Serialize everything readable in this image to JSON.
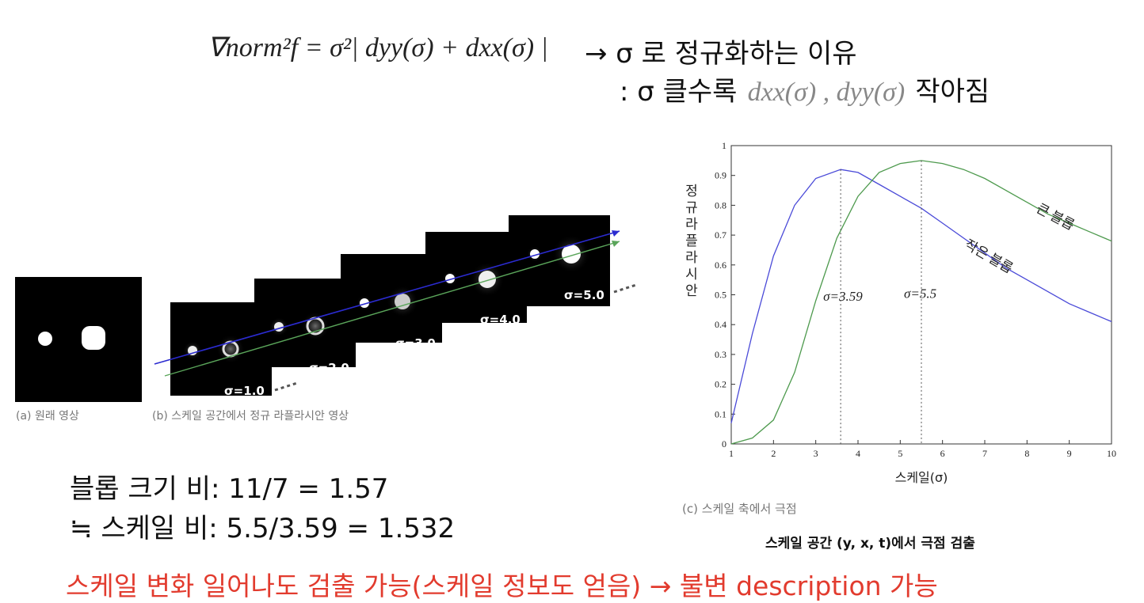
{
  "formula": {
    "lhs": "∇norm²f = σ²| dyy(σ) + dxx(σ) |",
    "arrow_text": "→ σ 로 정규화하는 이유",
    "line2_prefix": ": σ 클수록",
    "line2_terms": "dxx(σ) , dyy(σ)",
    "line2_suffix": "작아짐"
  },
  "figure_a": {
    "caption": "(a) 원래 영상"
  },
  "figure_b": {
    "caption": "(b) 스케일 공간에서 정규 라플라시안 영상",
    "sigma_labels": [
      "σ=1.0",
      "σ=2.0",
      "σ=3.0",
      "σ=4.0",
      "σ=5.0"
    ]
  },
  "figure_c": {
    "caption": "(c) 스케일 축에서 극점"
  },
  "scale_space_caption": "스케일 공간 (y, x, t)에서 극점 검출",
  "ratio": {
    "line1": "블롭 크기 비:  11/7 = 1.57",
    "line2": "≒ 스케일 비: 5.5/3.59  =  1.532"
  },
  "conclusion": "스케일 변화 일어나도 검출 가능(스케일 정보도 얻음) → 불변 description 가능",
  "colors": {
    "small_blob": "#4a4ad8",
    "large_blob": "#4e9a4e",
    "conclusion": "#e23b2e"
  },
  "chart_data": {
    "type": "line",
    "xlabel": "스케일(σ)",
    "ylabel": "정규 라플라시안",
    "xlim": [
      1,
      10
    ],
    "ylim": [
      0,
      1
    ],
    "xticks": [
      "1",
      "2",
      "3",
      "4",
      "5",
      "6",
      "7",
      "8",
      "9",
      "10"
    ],
    "yticks": [
      "0",
      "0.1",
      "0.2",
      "0.3",
      "0.4",
      "0.5",
      "0.6",
      "0.7",
      "0.8",
      "0.9",
      "1"
    ],
    "series": [
      {
        "name": "작은 블롭",
        "color": "#4a4ad8",
        "x": [
          1,
          1.5,
          2,
          2.5,
          3,
          3.59,
          4,
          4.5,
          5,
          5.5,
          6,
          6.5,
          7,
          7.5,
          8,
          8.5,
          9,
          9.5,
          10
        ],
        "y": [
          0.07,
          0.37,
          0.63,
          0.8,
          0.89,
          0.92,
          0.91,
          0.87,
          0.83,
          0.79,
          0.74,
          0.69,
          0.64,
          0.59,
          0.55,
          0.51,
          0.47,
          0.44,
          0.41
        ]
      },
      {
        "name": "큰 블롭",
        "color": "#4e9a4e",
        "x": [
          1,
          1.5,
          2,
          2.5,
          3,
          3.5,
          4,
          4.5,
          5,
          5.5,
          6,
          6.5,
          7,
          7.5,
          8,
          8.5,
          9,
          9.5,
          10
        ],
        "y": [
          0.0,
          0.02,
          0.08,
          0.24,
          0.48,
          0.69,
          0.83,
          0.91,
          0.94,
          0.95,
          0.94,
          0.92,
          0.89,
          0.85,
          0.81,
          0.77,
          0.74,
          0.71,
          0.68
        ]
      }
    ],
    "annotations": [
      {
        "text": "σ=3.59",
        "x": 3.59
      },
      {
        "text": "σ=5.5",
        "x": 5.5
      },
      {
        "text": "큰 블롭",
        "series": "큰 블롭"
      },
      {
        "text": "작은 블롭",
        "series": "작은 블롭"
      }
    ],
    "grid": false
  }
}
